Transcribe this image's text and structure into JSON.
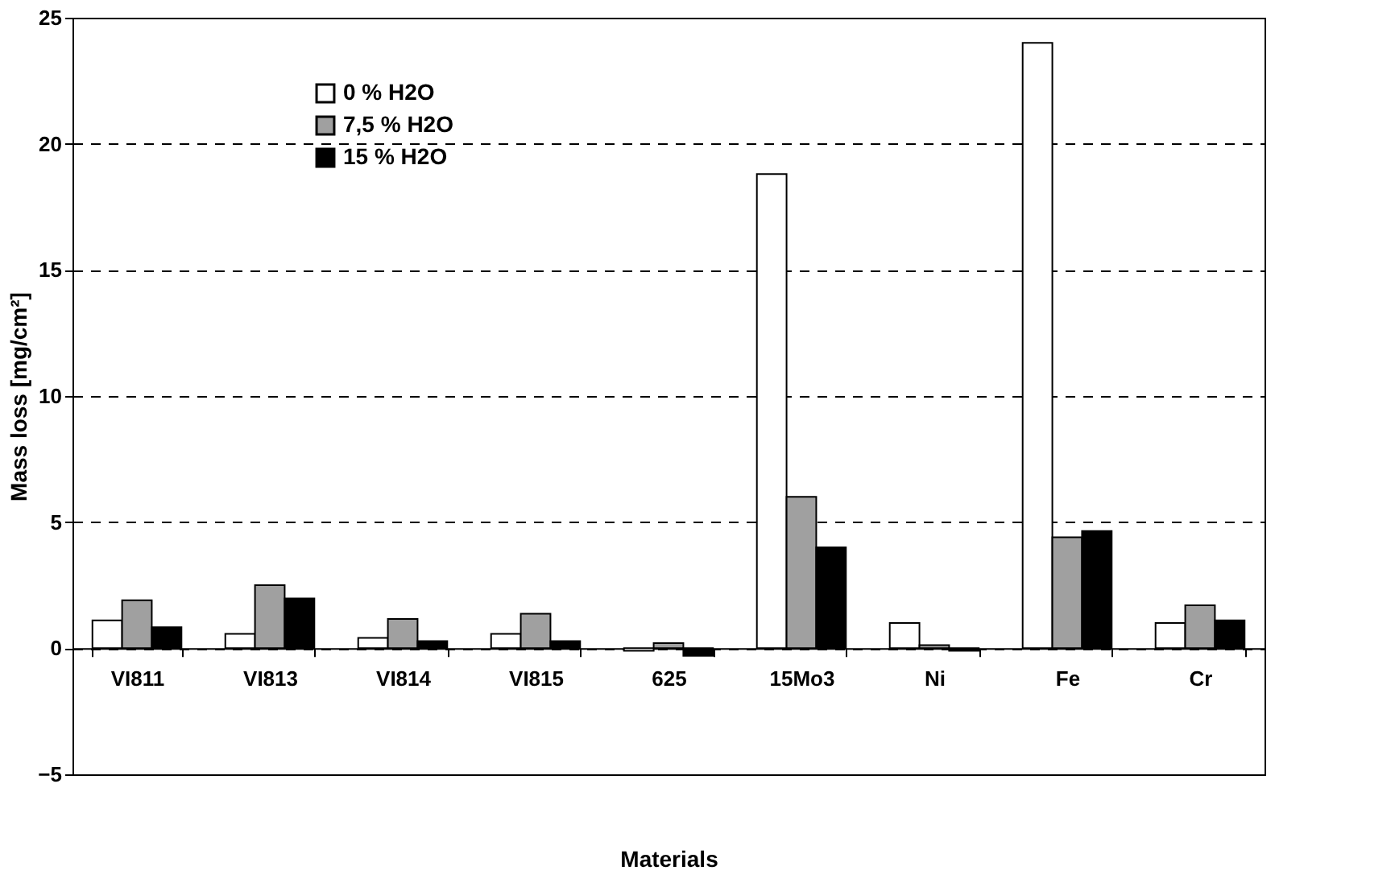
{
  "chart_data": {
    "type": "bar",
    "xlabel": "Materials",
    "ylabel": "Mass loss [mg/cm²]",
    "categories": [
      "VI811",
      "VI813",
      "VI814",
      "VI815",
      "625",
      "15Mo3",
      "Ni",
      "Fe",
      "Cr"
    ],
    "series": [
      {
        "name": "0 % H2O",
        "color": "#ffffff",
        "values": [
          1.1,
          0.57,
          0.41,
          0.57,
          -0.1,
          18.8,
          1.0,
          24.0,
          1.0
        ]
      },
      {
        "name": "7,5 % H2O",
        "color": "#a0a0a0",
        "values": [
          1.9,
          2.5,
          1.16,
          1.37,
          0.2,
          6.0,
          0.12,
          4.4,
          1.7
        ]
      },
      {
        "name": "15 % H2O",
        "color": "#000000",
        "values": [
          0.83,
          1.97,
          0.28,
          0.28,
          -0.3,
          4.0,
          -0.1,
          4.65,
          1.1
        ]
      }
    ],
    "ylim": [
      -5,
      25
    ],
    "yticks": [
      -5,
      0,
      5,
      10,
      15,
      20,
      25
    ],
    "grid": "y",
    "legend": "top left"
  }
}
